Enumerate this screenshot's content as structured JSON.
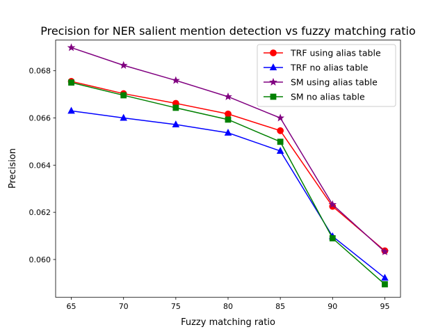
{
  "chart_data": {
    "type": "line",
    "title": "Precision for NER salient mention detection vs fuzzy matching ratio",
    "xlabel": "Fuzzy matching ratio",
    "ylabel": "Precision",
    "x": [
      65,
      70,
      75,
      80,
      85,
      90,
      95
    ],
    "xlim": [
      63.5,
      96.5
    ],
    "ylim": [
      0.0584,
      0.0693
    ],
    "xticks": [
      65,
      70,
      75,
      80,
      85,
      90,
      95
    ],
    "xtick_labels": [
      "65",
      "70",
      "75",
      "80",
      "85",
      "90",
      "95"
    ],
    "yticks": [
      0.06,
      0.062,
      0.064,
      0.066,
      0.068
    ],
    "ytick_labels": [
      "0.060",
      "0.062",
      "0.064",
      "0.066",
      "0.068"
    ],
    "grid": false,
    "legend_position": "top-right",
    "series": [
      {
        "name": "TRF using alias table",
        "color": "#ff0000",
        "marker": "circle",
        "values": [
          0.06755,
          0.06703,
          0.06662,
          0.06617,
          0.06546,
          0.06225,
          0.06037
        ]
      },
      {
        "name": "TRF no alias table",
        "color": "#0000ff",
        "marker": "triangle",
        "values": [
          0.0663,
          0.066,
          0.06572,
          0.06537,
          0.0646,
          0.06098,
          0.05922
        ]
      },
      {
        "name": "SM using alias table",
        "color": "#800080",
        "marker": "star",
        "values": [
          0.06898,
          0.06823,
          0.06759,
          0.0669,
          0.066,
          0.06233,
          0.06033
        ]
      },
      {
        "name": "SM no alias table",
        "color": "#008000",
        "marker": "square",
        "values": [
          0.0675,
          0.06696,
          0.06643,
          0.06593,
          0.06499,
          0.0609,
          0.05895
        ]
      }
    ]
  }
}
